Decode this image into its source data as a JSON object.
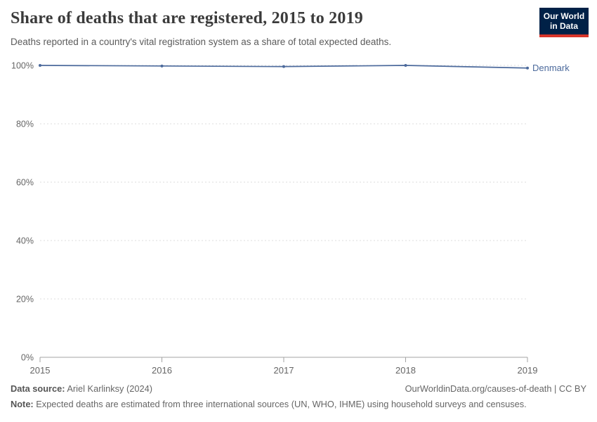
{
  "header": {
    "title": "Share of deaths that are registered, 2015 to 2019",
    "subtitle": "Deaths reported in a country's vital registration system as a share of total expected deaths.",
    "logo": {
      "line1": "Our World",
      "line2": "in Data"
    }
  },
  "chart_data": {
    "type": "line",
    "title": "Share of deaths that are registered, 2015 to 2019",
    "x": [
      2015,
      2016,
      2017,
      2018,
      2019
    ],
    "series": [
      {
        "name": "Denmark",
        "values": [
          100,
          99.8,
          99.6,
          100,
          99.1
        ],
        "color": "#4c6a9c"
      }
    ],
    "xlabel": "",
    "ylabel": "",
    "ylim": [
      0,
      100
    ],
    "yticks": [
      0,
      20,
      40,
      60,
      80,
      100
    ],
    "ytick_suffix": "%",
    "xticks": [
      2015,
      2016,
      2017,
      2018,
      2019
    ],
    "grid": "horizontal-dashed",
    "legend_position": "end-of-line-label"
  },
  "footer": {
    "datasource_label": "Data source:",
    "datasource_value": " Ariel Karlinksy (2024)",
    "link": "OurWorldinData.org/causes-of-death | CC BY",
    "note_label": "Note:",
    "note_value": " Expected deaths are estimated from three international sources (UN, WHO, IHME) using household surveys and censuses."
  },
  "colors": {
    "accent": "#4c6a9c",
    "logo_bg": "#002147",
    "logo_red": "#d8352a",
    "grid": "#dddddd",
    "axis": "#a3a3a3",
    "text_muted": "#666666",
    "title": "#3b3b3b",
    "subtitle": "#5b5b5b"
  }
}
